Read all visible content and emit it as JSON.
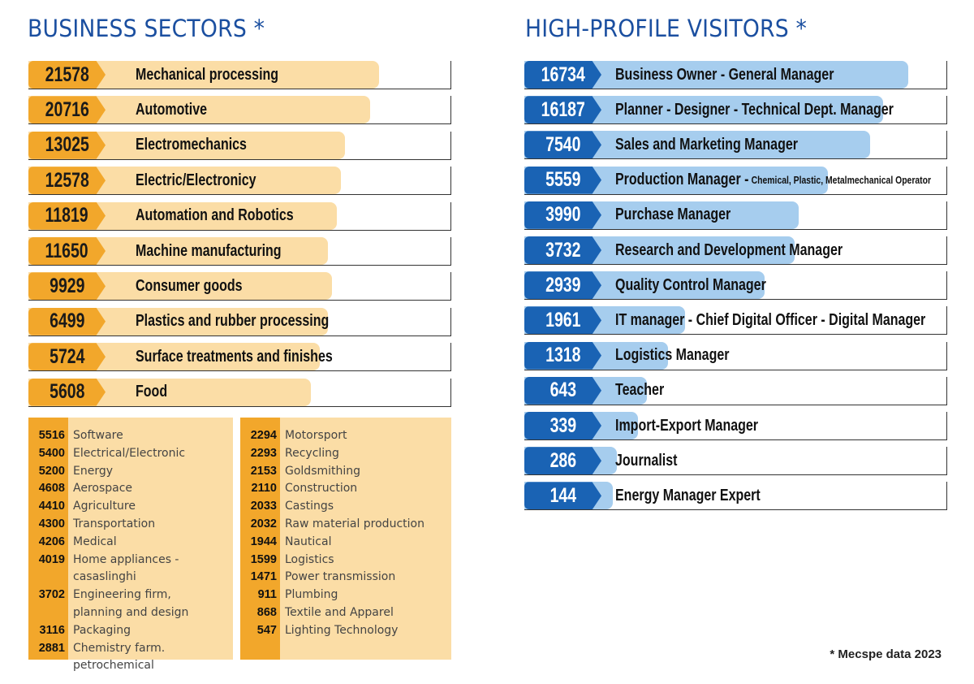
{
  "left_title": "BUSINESS SECTORS *",
  "right_title": "HIGH-PROFILE VISITORS *",
  "footnote": "* Mecspe data 2023",
  "colors": {
    "orange": "#f2a72b",
    "light_orange": "#fbdda6",
    "blue": "#1a63b4",
    "light_blue": "#a6cdee",
    "title": "#1b4fa0"
  },
  "chart_data": [
    {
      "type": "bar",
      "title": "BUSINESS SECTORS *",
      "categories": [
        "Mechanical processing",
        "Automotive",
        "Electromechanics",
        "Electric/Electronicy",
        "Automation and Robotics",
        "Machine manufacturing",
        "Consumer goods",
        "Plastics and rubber processing",
        "Surface treatments and finishes",
        "Food"
      ],
      "values": [
        21578,
        20716,
        13025,
        12578,
        11819,
        11650,
        9929,
        6499,
        5724,
        5608
      ],
      "bar_lengths": [
        0.83,
        0.81,
        0.75,
        0.74,
        0.73,
        0.71,
        0.72,
        0.71,
        0.69,
        0.67
      ]
    },
    {
      "type": "bar",
      "title": "HIGH-PROFILE VISITORS *",
      "categories": [
        "Business Owner - General Manager",
        "Planner - Designer - Technical Dept. Manager",
        "Sales and Marketing Manager",
        "Production Manager -",
        "Purchase Manager",
        "Research and Development Manager",
        "Quality Control Manager",
        "IT manager - Chief Digital Officer - Digital Manager",
        "Logistics Manager",
        "Teacher",
        "Import-Export Manager",
        "Journalist",
        "Energy Manager Expert"
      ],
      "label_suffix": [
        "",
        "",
        "",
        "Chemical, Plastic, Metalmechanical Operator",
        "",
        "",
        "",
        "",
        "",
        "",
        "",
        "",
        ""
      ],
      "values": [
        16734,
        16187,
        7540,
        5559,
        3990,
        3732,
        2939,
        1961,
        1318,
        643,
        339,
        286,
        144
      ],
      "bar_lengths": [
        0.91,
        0.85,
        0.82,
        0.72,
        0.65,
        0.64,
        0.57,
        0.38,
        0.34,
        0.29,
        0.27,
        0.22,
        0.21
      ]
    }
  ],
  "other_sectors_left": [
    {
      "value": "5516",
      "label": "Software"
    },
    {
      "value": "5400",
      "label": "Electrical/Electronic"
    },
    {
      "value": "5200",
      "label": "Energy"
    },
    {
      "value": "4608",
      "label": "Aerospace"
    },
    {
      "value": "4410",
      "label": "Agriculture"
    },
    {
      "value": "4300",
      "label": "Transportation"
    },
    {
      "value": "4206",
      "label": "Medical"
    },
    {
      "value": "4019",
      "label": "Home appliances -\ncasaslinghi"
    },
    {
      "value": "3702",
      "label": "Engineering firm,\nplanning and design"
    },
    {
      "value": "3116",
      "label": "Packaging"
    },
    {
      "value": "2881",
      "label": "Chemistry farm. petrochemical"
    }
  ],
  "other_sectors_right": [
    {
      "value": "2294",
      "label": "Motorsport"
    },
    {
      "value": "2293",
      "label": "Recycling"
    },
    {
      "value": "2153",
      "label": "Goldsmithing"
    },
    {
      "value": "2110",
      "label": "Construction"
    },
    {
      "value": "2033",
      "label": "Castings"
    },
    {
      "value": "2032",
      "label": "Raw material production"
    },
    {
      "value": "1944",
      "label": "Nautical"
    },
    {
      "value": "1599",
      "label": "Logistics"
    },
    {
      "value": "1471",
      "label": "Power transmission"
    },
    {
      "value": "911",
      "label": "Plumbing"
    },
    {
      "value": "868",
      "label": "Textile and Apparel"
    },
    {
      "value": "547",
      "label": "Lighting Technology"
    }
  ]
}
